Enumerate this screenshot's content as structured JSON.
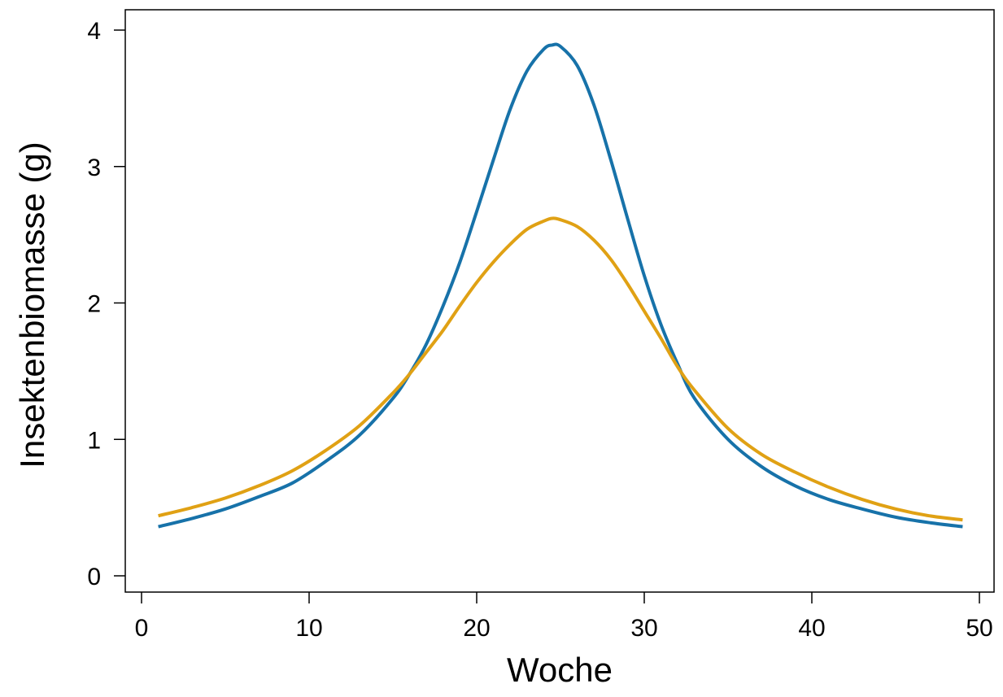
{
  "chart_data": {
    "type": "line",
    "title": "",
    "xlabel": "Woche",
    "ylabel": "Insektenbiomasse (g)",
    "xlim": [
      0,
      50
    ],
    "ylim": [
      0,
      4
    ],
    "x_ticks": [
      0,
      10,
      20,
      30,
      40,
      50
    ],
    "x_tick_labels": [
      "0",
      "10",
      "20",
      "30",
      "40",
      "50"
    ],
    "y_ticks": [
      0,
      1,
      2,
      3,
      4
    ],
    "y_tick_labels": [
      "0",
      "1",
      "2",
      "3",
      "4"
    ],
    "grid": false,
    "legend": "none",
    "colors": {
      "series_1": "#1772A9",
      "series_2": "#E0A114",
      "axis": "#000000"
    },
    "x": [
      1,
      3,
      5,
      7,
      9,
      11,
      13,
      15,
      16,
      17,
      18,
      19,
      20,
      21,
      22,
      23,
      24,
      24.5,
      25,
      26,
      27,
      28,
      29,
      30,
      31,
      32,
      33,
      35,
      37,
      39,
      41,
      43,
      45,
      47,
      49
    ],
    "series": [
      {
        "name": "",
        "color": "#1772A9",
        "values": [
          0.36,
          0.42,
          0.49,
          0.58,
          0.68,
          0.84,
          1.03,
          1.3,
          1.48,
          1.7,
          1.98,
          2.3,
          2.67,
          3.05,
          3.42,
          3.7,
          3.86,
          3.89,
          3.88,
          3.74,
          3.45,
          3.05,
          2.62,
          2.2,
          1.84,
          1.55,
          1.3,
          1.0,
          0.8,
          0.66,
          0.56,
          0.49,
          0.43,
          0.39,
          0.36
        ]
      },
      {
        "name": "",
        "color": "#E0A114",
        "values": [
          0.44,
          0.5,
          0.57,
          0.66,
          0.77,
          0.92,
          1.1,
          1.34,
          1.48,
          1.64,
          1.8,
          1.98,
          2.15,
          2.3,
          2.43,
          2.54,
          2.6,
          2.62,
          2.61,
          2.56,
          2.46,
          2.32,
          2.14,
          1.94,
          1.74,
          1.53,
          1.36,
          1.08,
          0.89,
          0.76,
          0.65,
          0.56,
          0.49,
          0.44,
          0.41
        ]
      }
    ]
  }
}
